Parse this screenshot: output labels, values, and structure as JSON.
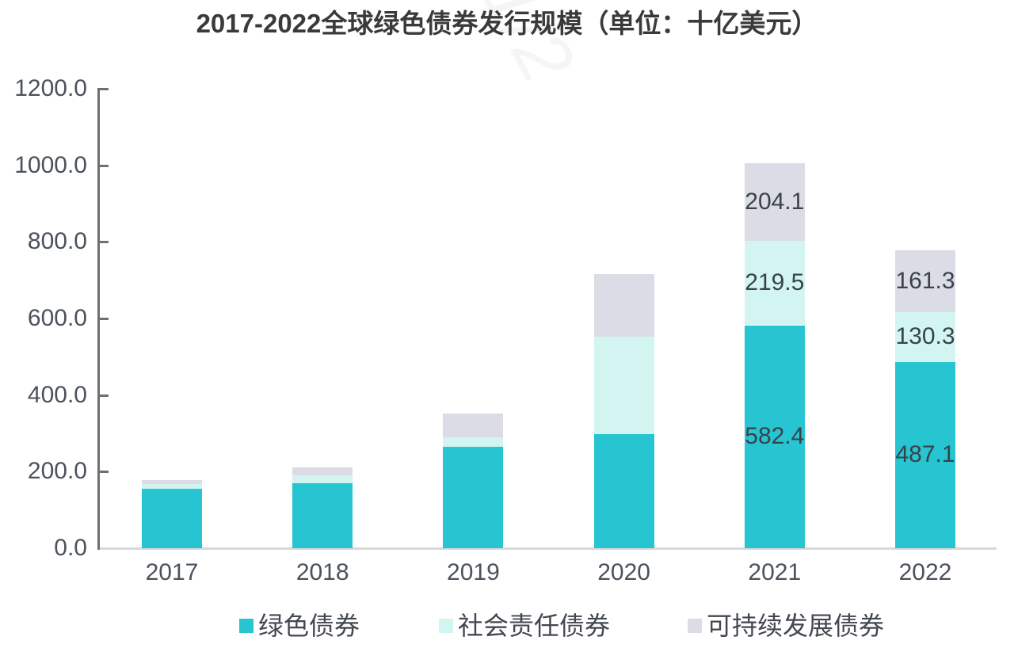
{
  "title": "2017-2022全球绿色债券发行规模（单位：十亿美元）",
  "watermark": "1/2",
  "chart_data": {
    "type": "bar",
    "stacked": true,
    "title": "2017-2022全球绿色债券发行规模（单位：十亿美元）",
    "unit": "十亿美元",
    "categories": [
      "2017",
      "2018",
      "2019",
      "2020",
      "2021",
      "2022"
    ],
    "series": [
      {
        "name": "绿色债券",
        "color": "#26c5d1",
        "values": [
          155,
          170,
          265,
          297,
          582.4,
          487.1
        ],
        "labels": [
          null,
          null,
          null,
          null,
          "582.4",
          "487.1"
        ]
      },
      {
        "name": "社会责任债券",
        "color": "#d2f5f1",
        "values": [
          12,
          21,
          25,
          255,
          219.5,
          130.3
        ],
        "labels": [
          null,
          null,
          null,
          null,
          "219.5",
          "130.3"
        ]
      },
      {
        "name": "可持续发展债券",
        "color": "#dbdce5",
        "values": [
          11,
          21,
          62,
          164,
          204.1,
          161.3
        ],
        "labels": [
          null,
          null,
          null,
          null,
          "204.1",
          "161.3"
        ]
      }
    ],
    "ylim": [
      0,
      1200
    ],
    "yticks": [
      "0.0",
      "200.0",
      "400.0",
      "600.0",
      "800.0",
      "1000.0",
      "1200.0"
    ],
    "xlabel": "",
    "ylabel": "",
    "grid": false,
    "legend_position": "bottom"
  },
  "colors": {
    "axis_line": "#6f6f6f",
    "baseline": "#d8d8d8",
    "axis_text": "#4b525c",
    "value_text": "#39424a",
    "title_text": "#3a3a3a",
    "background": "#ffffff"
  }
}
